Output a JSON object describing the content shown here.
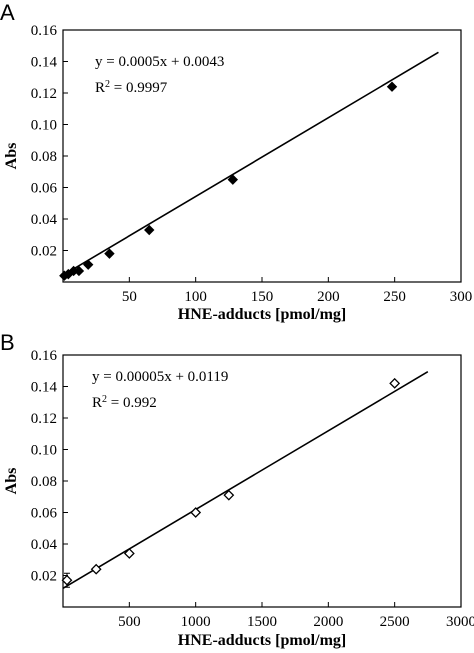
{
  "chart_data": [
    {
      "type": "scatter",
      "panel_label": "A",
      "xlabel": "HNE-adducts [pmol/mg]",
      "ylabel": "Abs",
      "xlim": [
        0,
        300
      ],
      "ylim": [
        0,
        0.16
      ],
      "x_ticks": [
        50,
        100,
        150,
        200,
        250,
        300
      ],
      "x_tick_labels": [
        "50",
        "100",
        "150",
        "200",
        "250",
        "300"
      ],
      "y_ticks": [
        0.02,
        0.04,
        0.06,
        0.08,
        0.1,
        0.12,
        0.14,
        0.16
      ],
      "y_tick_labels": [
        "0.02",
        "0.04",
        "0.06",
        "0.08",
        "0.10",
        "0.12",
        "0.14",
        "0.16"
      ],
      "marker": "filled-diamond",
      "grid": false,
      "series": [
        {
          "x": [
            1,
            4,
            8,
            12,
            19,
            35,
            65,
            128,
            248
          ],
          "y": [
            0.004,
            0.005,
            0.007,
            0.007,
            0.011,
            0.018,
            0.033,
            0.065,
            0.124
          ]
        }
      ],
      "fit_line": {
        "slope": 0.0005,
        "intercept": 0.0043,
        "x_range": [
          0,
          283
        ]
      },
      "annotations": {
        "equation": "y = 0.0005x + 0.0043",
        "r2_label": "R",
        "r2_sup": "2",
        "r2_value": " = 0.9997"
      }
    },
    {
      "type": "scatter",
      "panel_label": "B",
      "xlabel": "HNE-adducts [pmol/mg]",
      "ylabel": "Abs",
      "xlim": [
        0,
        3000
      ],
      "ylim": [
        0,
        0.16
      ],
      "x_ticks": [
        500,
        1000,
        1500,
        2000,
        2500,
        3000
      ],
      "x_tick_labels": [
        "500",
        "1000",
        "1500",
        "2000",
        "2500",
        "3000"
      ],
      "y_ticks": [
        0.02,
        0.04,
        0.06,
        0.08,
        0.1,
        0.12,
        0.14,
        0.16
      ],
      "y_tick_labels": [
        "0.02",
        "0.04",
        "0.06",
        "0.08",
        "0.10",
        "0.12",
        "0.14",
        "0.16"
      ],
      "marker": "open-diamond",
      "grid": false,
      "series": [
        {
          "x": [
            30,
            250,
            500,
            1000,
            1250,
            2500
          ],
          "y": [
            0.017,
            0.024,
            0.034,
            0.06,
            0.071,
            0.142
          ]
        }
      ],
      "fit_line": {
        "slope": 5e-05,
        "intercept": 0.0119,
        "x_range": [
          0,
          2750
        ]
      },
      "error_bar_points": [
        0
      ],
      "annotations": {
        "equation": "y = 0.00005x + 0.0119",
        "r2_label": "R",
        "r2_sup": "2",
        "r2_value": " = 0.992"
      }
    }
  ]
}
